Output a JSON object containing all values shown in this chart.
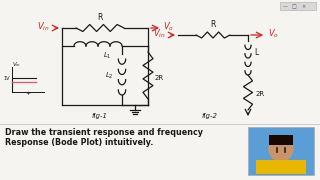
{
  "bg_color": "#f5f4f0",
  "text_color": "#1a1a1a",
  "red_color": "#cc2222",
  "title_line1": "Draw the transient response and frequency",
  "title_line2": "Response (Bode Plot) intuitively.",
  "fig1_label": "fig-1",
  "fig2_label": "fig-2",
  "ui_bar_color": "#d8d8d8",
  "photo_bg": "#5b9ed6",
  "skin_color": "#c8956a",
  "shirt_color": "#e8b800",
  "hair_color": "#1a0800"
}
